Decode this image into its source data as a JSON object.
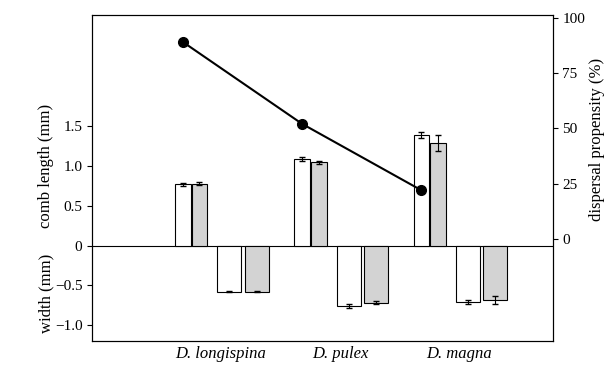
{
  "chart_data": {
    "type": "bar",
    "categories": [
      "D. longispina",
      "D. pulex",
      "D. magna"
    ],
    "ylabels": [
      "comb length (mm)",
      "width (mm)"
    ],
    "y2label": "dispersal propensity (%)",
    "ylim": [
      -1.2,
      2.9
    ],
    "yticks": [
      {
        "value": -1.0,
        "label": "−1.0"
      },
      {
        "value": -0.5,
        "label": "−0.5"
      },
      0,
      0.5,
      1.0,
      1.5
    ],
    "y2lim": [
      -46,
      101
    ],
    "y2ticks": [
      0,
      25,
      50,
      75,
      100
    ],
    "series": [
      {
        "type": "bar",
        "color": "#ffffff",
        "values": [
          0.77,
          1.09,
          1.39
        ],
        "errors": [
          0.02,
          0.03,
          0.04
        ]
      },
      {
        "type": "bar",
        "color": "#d3d3d3",
        "values": [
          0.78,
          1.05,
          1.29
        ],
        "errors": [
          0.02,
          0.02,
          0.1
        ]
      },
      {
        "type": "bar",
        "color": "#ffffff",
        "values": [
          -0.58,
          -0.76,
          -0.71
        ],
        "errors": [
          0.01,
          0.02,
          0.02
        ]
      },
      {
        "type": "bar",
        "color": "#d3d3d3",
        "values": [
          -0.58,
          -0.72,
          -0.69
        ],
        "errors": [
          0.01,
          0.02,
          0.05
        ]
      },
      {
        "type": "line",
        "axis": "y2",
        "color": "#000000",
        "marker": "o",
        "line_style": "solid",
        "values": [
          89,
          52,
          22
        ]
      }
    ]
  }
}
